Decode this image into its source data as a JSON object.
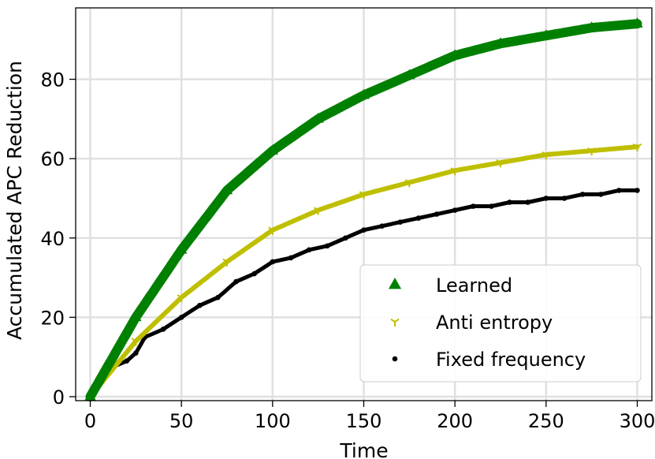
{
  "chart_data": {
    "type": "scatter",
    "xlabel": "Time",
    "ylabel": "Accumulated APC Reduction",
    "xlim": [
      -8,
      308
    ],
    "ylim": [
      -1,
      98
    ],
    "x_ticks": [
      0,
      50,
      100,
      150,
      200,
      250,
      300
    ],
    "y_ticks": [
      0,
      20,
      40,
      60,
      80
    ],
    "grid": true,
    "legend_position": "lower-right",
    "series": [
      {
        "name": "Learned",
        "marker": "triangle-up",
        "color": "#008000",
        "x": [
          0,
          25,
          50,
          75,
          100,
          125,
          150,
          175,
          200,
          225,
          250,
          275,
          300
        ],
        "y": [
          0,
          20,
          37,
          52,
          62,
          70,
          76,
          81,
          86,
          89,
          91,
          93,
          94
        ]
      },
      {
        "name": "Anti entropy",
        "marker": "tri-down",
        "color": "#bfbf00",
        "x": [
          0,
          25,
          50,
          75,
          100,
          125,
          150,
          175,
          200,
          225,
          250,
          275,
          300
        ],
        "y": [
          0,
          14,
          25,
          34,
          42,
          47,
          51,
          54,
          57,
          59,
          61,
          62,
          63
        ]
      },
      {
        "name": "Fixed frequency",
        "marker": "circle",
        "color": "#000000",
        "x": [
          0,
          10,
          20,
          25,
          30,
          40,
          50,
          60,
          70,
          80,
          90,
          100,
          110,
          120,
          130,
          140,
          150,
          160,
          170,
          180,
          190,
          200,
          210,
          220,
          230,
          240,
          250,
          260,
          270,
          280,
          290,
          300
        ],
        "y": [
          0,
          7,
          9,
          11,
          15,
          17,
          20,
          23,
          25,
          29,
          31,
          34,
          35,
          37,
          38,
          40,
          42,
          43,
          44,
          45,
          46,
          47,
          48,
          48,
          49,
          49,
          50,
          50,
          51,
          51,
          52,
          52
        ]
      }
    ]
  }
}
